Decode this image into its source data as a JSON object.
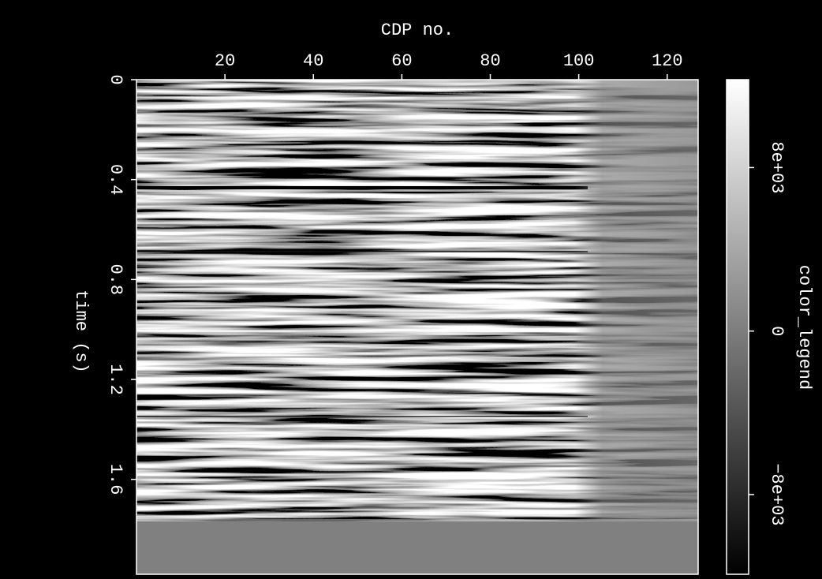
{
  "chart_data": {
    "type": "image",
    "x_label": "CDP no.",
    "y_label": "time (s)",
    "xlim": [
      0,
      127
    ],
    "xticks": [
      20,
      40,
      60,
      80,
      100,
      120
    ],
    "ylim": [
      0,
      1.98
    ],
    "yticks": [
      0,
      0.4,
      0.8,
      1.2,
      1.6
    ],
    "y_inverted": true,
    "colorbar": {
      "label": "color_legend",
      "lim": [
        -11900,
        12300
      ],
      "ticks": [
        {
          "value": 8000,
          "label": "8e+03"
        },
        0,
        {
          "value": -8000,
          "label": "−8e+03"
        }
      ]
    }
  }
}
